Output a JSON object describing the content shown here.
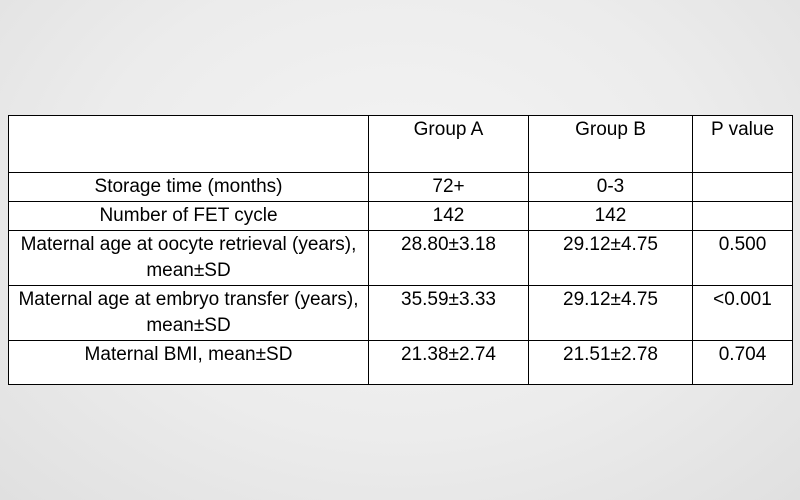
{
  "table": {
    "headers": {
      "label": "",
      "group_a": "Group A",
      "group_b": "Group B",
      "p_value": "P value"
    },
    "rows": [
      {
        "label": "Storage time (months)",
        "group_a": "72+",
        "group_b": "0-3",
        "p": ""
      },
      {
        "label": "Number of FET cycle",
        "group_a": "142",
        "group_b": "142",
        "p": ""
      },
      {
        "label": "Maternal age at oocyte retrieval (years), mean±SD",
        "group_a": "28.80±3.18",
        "group_b": "29.12±4.75",
        "p": "0.500"
      },
      {
        "label": "Maternal age at embryo transfer (years), mean±SD",
        "group_a": "35.59±3.33",
        "group_b": "29.12±4.75",
        "p": "<0.001"
      },
      {
        "label": "Maternal BMI, mean±SD",
        "group_a": "21.38±2.74",
        "group_b": "21.51±2.78",
        "p": "0.704"
      }
    ]
  },
  "chart_data": {
    "type": "table",
    "title": "",
    "columns": [
      "",
      "Group A",
      "Group B",
      "P value"
    ],
    "rows": [
      [
        "Storage time (months)",
        "72+",
        "0-3",
        ""
      ],
      [
        "Number of FET cycle",
        "142",
        "142",
        ""
      ],
      [
        "Maternal age at oocyte retrieval (years), mean±SD",
        "28.80±3.18",
        "29.12±4.75",
        "0.500"
      ],
      [
        "Maternal age at embryo transfer (years), mean±SD",
        "35.59±3.33",
        "29.12±4.75",
        "<0.001"
      ],
      [
        "Maternal BMI, mean±SD",
        "21.38±2.74",
        "21.51±2.78",
        "0.704"
      ]
    ],
    "notes": "Row 'Maternal age at embryo transfer': Group B value and P value rendered in bold (significant result)."
  },
  "colors": {
    "background": "#ececec",
    "table_background": "#ffffff",
    "border": "#000000",
    "text": "#000000"
  }
}
